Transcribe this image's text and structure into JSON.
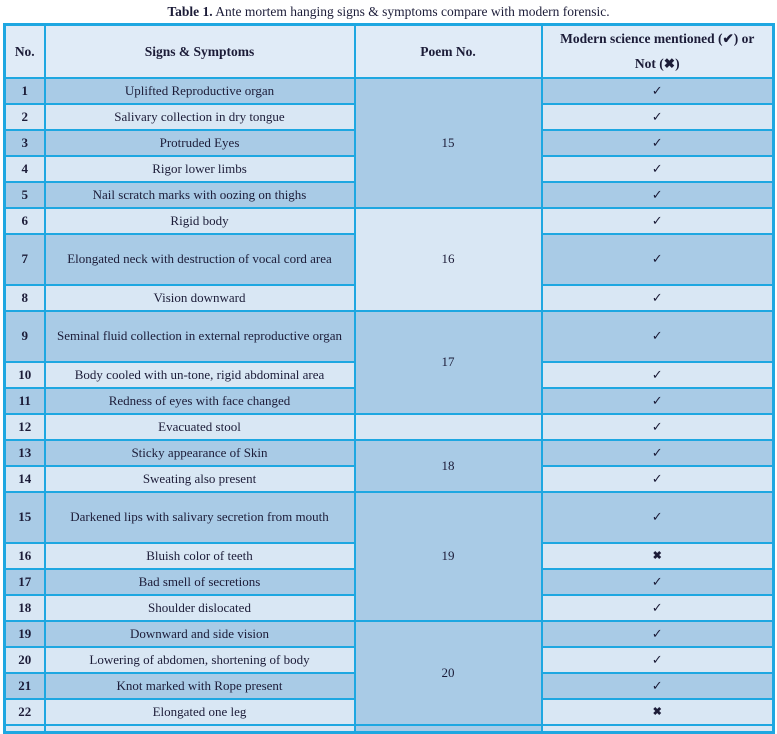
{
  "caption": {
    "prefix": "Table 1.",
    "text": " Ante mortem hanging signs & symptoms compare with modern forensic."
  },
  "header": {
    "no": "No.",
    "signs": "Signs & Symptoms",
    "poem": "Poem No.",
    "modern_line1": "Modern science mentioned (✔) or",
    "modern_line2": "Not (✖)"
  },
  "poems": {
    "g15": "15",
    "g16": "16",
    "g17": "17",
    "g18": "18",
    "g19": "19",
    "g20": "20"
  },
  "colors": {
    "border": "#1ea7e1",
    "row_dark": "#a9cbe6",
    "row_light": "#d9e7f4",
    "header_bg": "#e0ebf7",
    "text": "#1c1c38"
  },
  "rows": [
    {
      "no": "1",
      "text": "Uplifted Reproductive organ",
      "check": "✓"
    },
    {
      "no": "2",
      "text": "Salivary collection in dry tongue",
      "check": "✓"
    },
    {
      "no": "3",
      "text": "Protruded Eyes",
      "check": "✓"
    },
    {
      "no": "4",
      "text": "Rigor lower limbs",
      "check": "✓"
    },
    {
      "no": "5",
      "text": "Nail scratch marks with oozing on thighs",
      "check": "✓"
    },
    {
      "no": "6",
      "text": "Rigid body",
      "check": "✓"
    },
    {
      "no": "7",
      "text": "Elongated neck with destruction of vocal cord area",
      "check": "✓"
    },
    {
      "no": "8",
      "text": "Vision downward",
      "check": "✓"
    },
    {
      "no": "9",
      "text": "Seminal fluid collection in external reproductive organ",
      "check": "✓"
    },
    {
      "no": "10",
      "text": "Body cooled with un-tone, rigid abdominal area",
      "check": "✓"
    },
    {
      "no": "11",
      "text": "Redness of eyes with face changed",
      "check": "✓"
    },
    {
      "no": "12",
      "text": "Evacuated stool",
      "check": "✓"
    },
    {
      "no": "13",
      "text": "Sticky appearance of Skin",
      "check": "✓"
    },
    {
      "no": "14",
      "text": "Sweating also present",
      "check": "✓"
    },
    {
      "no": "15",
      "text": "Darkened lips with salivary secretion from mouth",
      "check": "✓"
    },
    {
      "no": "16",
      "text": "Bluish color of teeth",
      "check": "✖"
    },
    {
      "no": "17",
      "text": "Bad smell of secretions",
      "check": "✓"
    },
    {
      "no": "18",
      "text": "Shoulder dislocated",
      "check": "✓"
    },
    {
      "no": "19",
      "text": "Downward and side vision",
      "check": "✓"
    },
    {
      "no": "20",
      "text": "Lowering of abdomen, shortening of body",
      "check": "✓"
    },
    {
      "no": "21",
      "text": "Knot marked with Rope present",
      "check": "✓"
    },
    {
      "no": "22",
      "text": "Elongated one leg",
      "check": "✖"
    }
  ]
}
